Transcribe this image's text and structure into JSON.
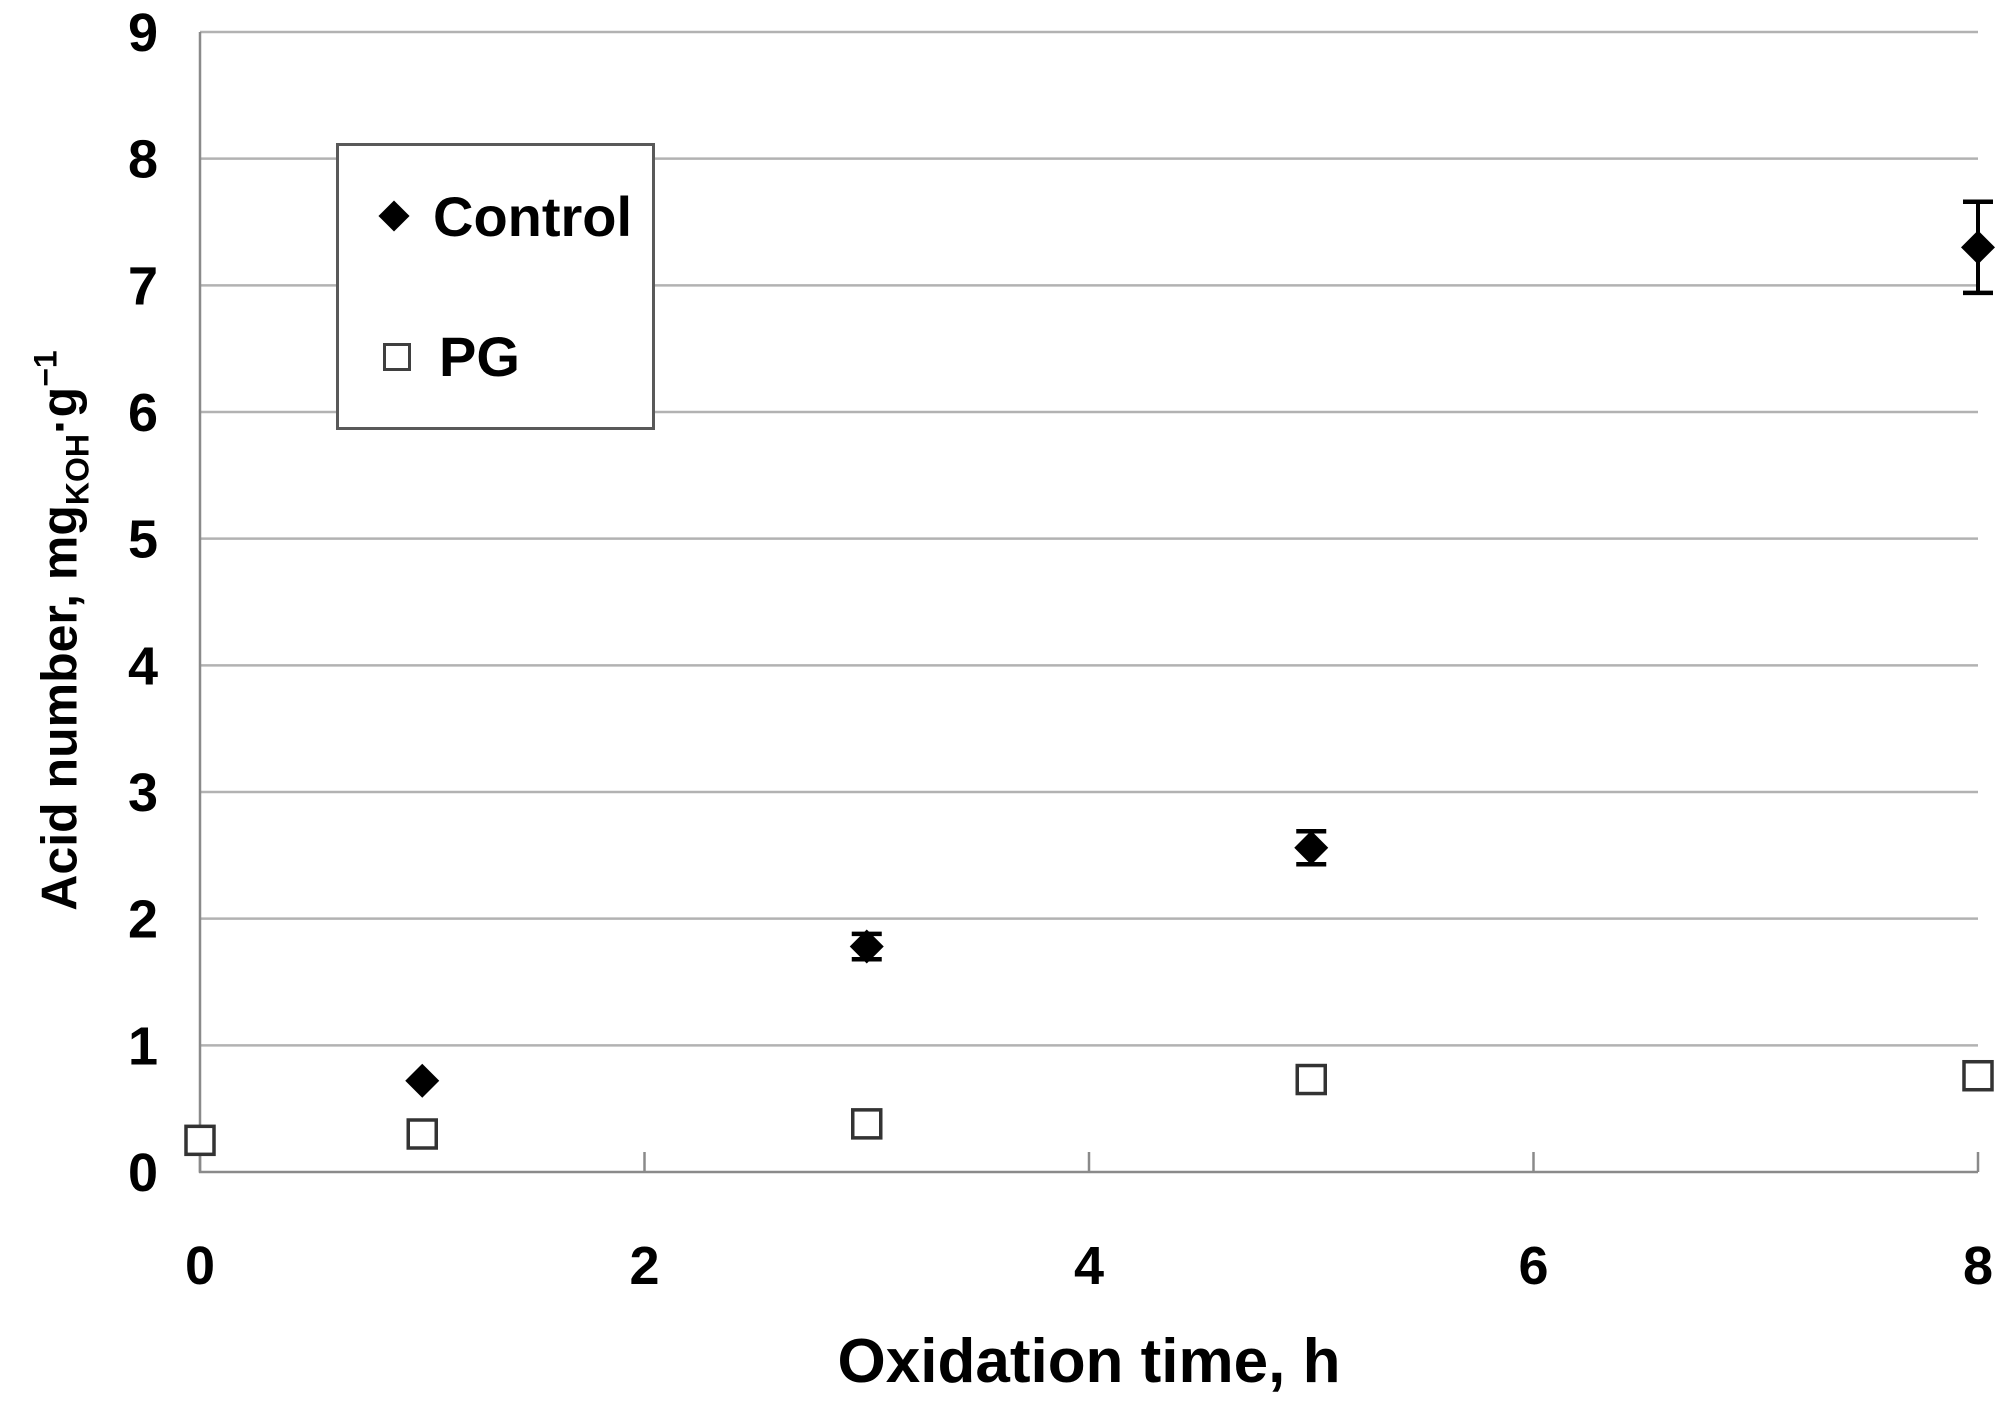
{
  "colors": {
    "background": "#ffffff",
    "gridline": "#b2b2b2",
    "axis": "#8a8a8a",
    "marker": "#000000",
    "open_marker_border": "#333333",
    "legend_border": "#595959",
    "text": "#000000"
  },
  "legend": {
    "items": [
      {
        "label": "Control",
        "marker": "filled-diamond"
      },
      {
        "label": "PG",
        "marker": "open-square"
      }
    ],
    "position": "inside top-left"
  },
  "chart_data": {
    "type": "scatter",
    "title": "",
    "xlabel": "Oxidation time, h",
    "ylabel": "Acid number, mgKOH·g−1",
    "ylabel_parts": {
      "main": "Acid number, mg",
      "sub": "KOH",
      "mid": "·g",
      "sup": "−1"
    },
    "xlim": [
      0,
      8
    ],
    "ylim": [
      0,
      9
    ],
    "x_ticks": [
      0,
      2,
      4,
      6,
      8
    ],
    "y_ticks": [
      0,
      1,
      2,
      3,
      4,
      5,
      6,
      7,
      8,
      9
    ],
    "grid": "horizontal",
    "legend_position": "inside top-left",
    "series": [
      {
        "name": "Control",
        "marker": "filled-diamond",
        "color": "#000000",
        "points": [
          {
            "x": 1,
            "y": 0.72
          },
          {
            "x": 3,
            "y": 1.78,
            "yerr": 0.1
          },
          {
            "x": 5,
            "y": 2.56,
            "yerr": 0.13
          },
          {
            "x": 8,
            "y": 7.3,
            "yerr": 0.36
          }
        ]
      },
      {
        "name": "PG",
        "marker": "open-square",
        "color": "#000000",
        "points": [
          {
            "x": 0,
            "y": 0.25
          },
          {
            "x": 1,
            "y": 0.3
          },
          {
            "x": 3,
            "y": 0.38
          },
          {
            "x": 5,
            "y": 0.73
          },
          {
            "x": 8,
            "y": 0.76
          }
        ]
      }
    ]
  }
}
